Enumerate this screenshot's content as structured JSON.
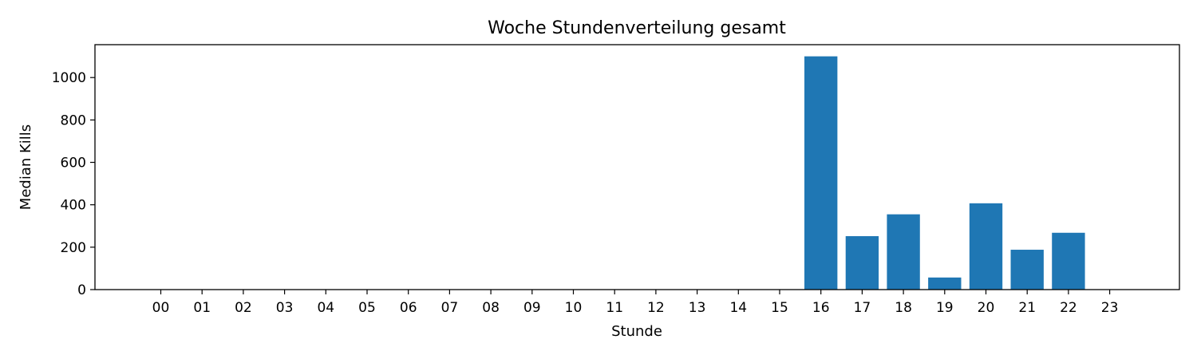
{
  "chart_data": {
    "type": "bar",
    "title": "Woche Stundenverteilung gesamt",
    "xlabel": "Stunde",
    "ylabel": "Median Kills",
    "categories": [
      "00",
      "01",
      "02",
      "03",
      "04",
      "05",
      "06",
      "07",
      "08",
      "09",
      "10",
      "11",
      "12",
      "13",
      "14",
      "15",
      "16",
      "17",
      "18",
      "19",
      "20",
      "21",
      "22",
      "23"
    ],
    "values": [
      0,
      0,
      0,
      0,
      0,
      0,
      0,
      0,
      0,
      0,
      0,
      0,
      0,
      0,
      0,
      0,
      1100,
      252,
      355,
      57,
      407,
      188,
      268,
      0
    ],
    "ylim": [
      0,
      1155
    ],
    "yticks": [
      0,
      200,
      400,
      600,
      800,
      1000
    ],
    "grid": false,
    "colors": {
      "bar": "#1f77b4",
      "axes": "#000000"
    }
  }
}
